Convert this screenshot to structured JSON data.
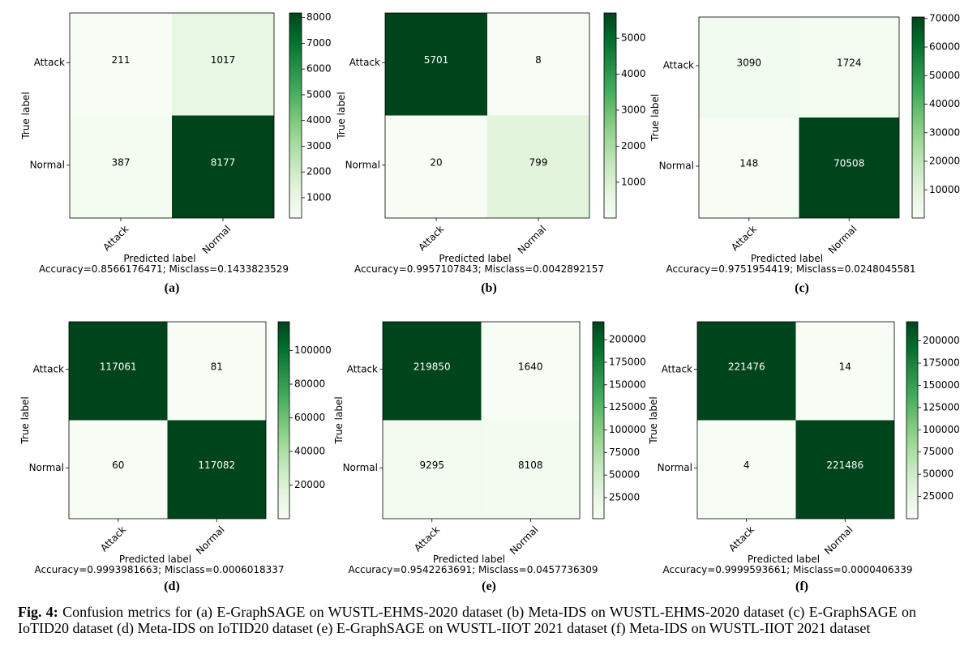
{
  "figure": {
    "caption_label": "Fig. 4:",
    "caption_text": "Confusion metrics for (a) E-GraphSAGE on WUSTL-EHMS-2020 dataset (b) Meta-IDS on WUSTL-EHMS-2020 dataset (c) E-GraphSAGE on IoTID20 dataset (d) Meta-IDS on IoTID20 dataset (e) E-GraphSAGE on WUSTL-IIOT 2021 dataset (f) Meta-IDS on WUSTL-IIOT 2021 dataset"
  },
  "colors": {
    "low": "#f7fcf5",
    "high": "#00441b",
    "axis": "#000000"
  },
  "chart_data": [
    {
      "type": "heatmap",
      "panel_label": "(a)",
      "classes": [
        "Attack",
        "Normal"
      ],
      "matrix": [
        [
          211,
          1017
        ],
        [
          387,
          8177
        ]
      ],
      "xlabel": "Predicted label",
      "ylabel": "True label",
      "accuracy_text": "Accuracy=0.8566176471; Misclass=0.1433823529",
      "colorbar": {
        "min": 211,
        "max": 8177,
        "ticks": [
          1000,
          2000,
          3000,
          4000,
          5000,
          6000,
          7000,
          8000
        ]
      }
    },
    {
      "type": "heatmap",
      "panel_label": "(b)",
      "classes": [
        "Attack",
        "Normal"
      ],
      "matrix": [
        [
          5701,
          8
        ],
        [
          20,
          799
        ]
      ],
      "xlabel": "Predicted label",
      "ylabel": "True label",
      "accuracy_text": "Accuracy=0.9957107843; Misclass=0.0042892157",
      "colorbar": {
        "min": 8,
        "max": 5701,
        "ticks": [
          1000,
          2000,
          3000,
          4000,
          5000
        ]
      }
    },
    {
      "type": "heatmap",
      "panel_label": "(c)",
      "classes": [
        "Attack",
        "Normal"
      ],
      "matrix": [
        [
          3090,
          1724
        ],
        [
          148,
          70508
        ]
      ],
      "xlabel": "Predicted label",
      "ylabel": "True label",
      "accuracy_text": "Accuracy=0.9751954419; Misclass=0.0248045581",
      "colorbar": {
        "min": 148,
        "max": 70508,
        "ticks": [
          10000,
          20000,
          30000,
          40000,
          50000,
          60000,
          70000
        ]
      }
    },
    {
      "type": "heatmap",
      "panel_label": "(d)",
      "classes": [
        "Attack",
        "Normal"
      ],
      "matrix": [
        [
          117061,
          81
        ],
        [
          60,
          117082
        ]
      ],
      "xlabel": "Predicted label",
      "ylabel": "True label",
      "accuracy_text": "Accuracy=0.9993981663; Misclass=0.0006018337",
      "colorbar": {
        "min": 60,
        "max": 117082,
        "ticks": [
          20000,
          40000,
          60000,
          80000,
          100000
        ]
      }
    },
    {
      "type": "heatmap",
      "panel_label": "(e)",
      "classes": [
        "Attack",
        "Normal"
      ],
      "matrix": [
        [
          219850,
          1640
        ],
        [
          9295,
          8108
        ]
      ],
      "xlabel": "Predicted label",
      "ylabel": "True label",
      "accuracy_text": "Accuracy=0.9542263691; Misclass=0.0457736309",
      "colorbar": {
        "min": 1640,
        "max": 219850,
        "ticks": [
          25000,
          50000,
          75000,
          100000,
          125000,
          150000,
          175000,
          200000
        ]
      }
    },
    {
      "type": "heatmap",
      "panel_label": "(f)",
      "classes": [
        "Attack",
        "Normal"
      ],
      "matrix": [
        [
          221476,
          14
        ],
        [
          4,
          221486
        ]
      ],
      "xlabel": "Predicted label",
      "ylabel": "True label",
      "accuracy_text": "Accuracy=0.9999593661; Misclass=0.0000406339",
      "colorbar": {
        "min": 4,
        "max": 221486,
        "ticks": [
          25000,
          50000,
          75000,
          100000,
          125000,
          150000,
          175000,
          200000
        ]
      }
    }
  ]
}
